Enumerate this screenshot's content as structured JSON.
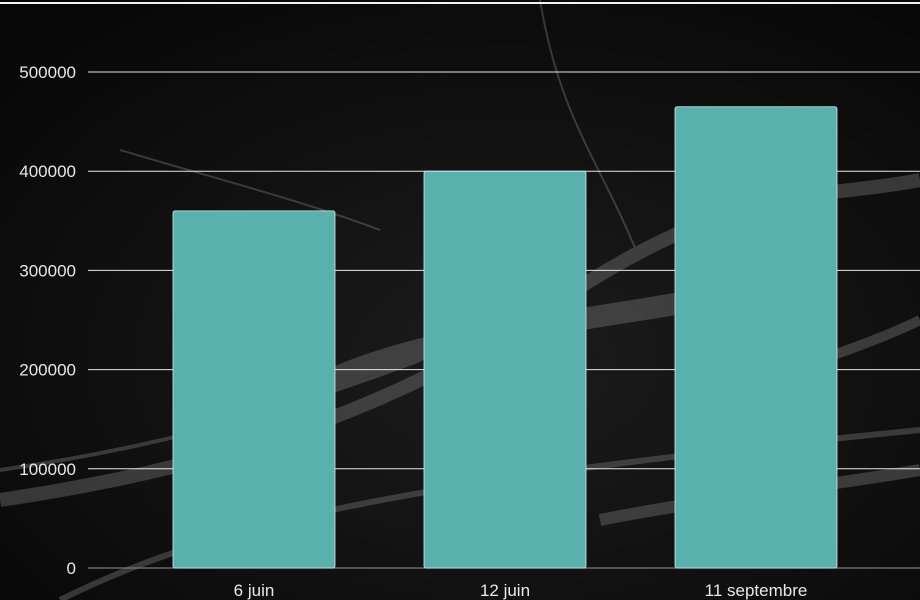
{
  "chart_data": {
    "type": "bar",
    "categories": [
      "6 juin",
      "12 juin",
      "11 septembre"
    ],
    "values": [
      360000,
      400000,
      465000
    ],
    "y_ticks": [
      "0",
      "100000",
      "200000",
      "300000",
      "400000",
      "500000"
    ],
    "tick_values": [
      0,
      100000,
      200000,
      300000,
      400000,
      500000
    ],
    "ylim": [
      0,
      500000
    ],
    "grid": true,
    "legend": "none"
  },
  "colors": {
    "background": "#0b0b0b",
    "bar": "#5ab0ad",
    "bar_stroke": "#d9ecea",
    "grid": "#e6e6e6",
    "axis": "#7a7a7a",
    "text": "#e8e8e8"
  }
}
